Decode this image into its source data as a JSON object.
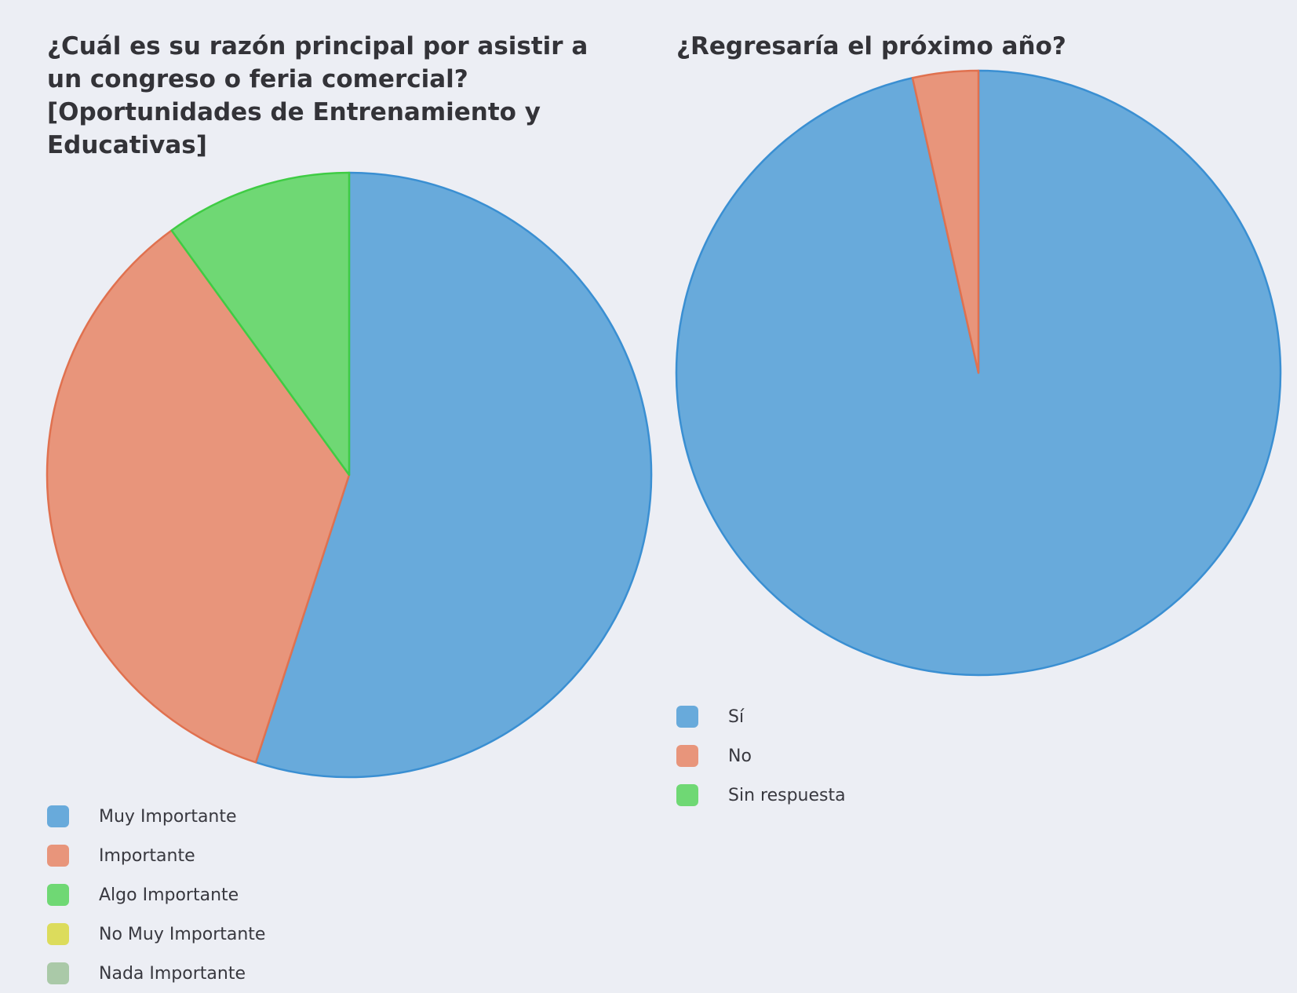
{
  "charts": [
    {
      "id": "left",
      "chart_data": {
        "type": "pie",
        "title": "¿Cuál es su razón principal por asistir a un congreso o feria comercial? [Oportunidades de Entrenamiento y Educativas]",
        "categories": [
          "Muy Importante",
          "Importante",
          "Algo Importante",
          "No Muy Importante",
          "Nada Importante"
        ],
        "values": [
          55,
          35,
          10,
          0,
          0
        ],
        "unit": "percent (estimated)",
        "colors": [
          "#68aadb",
          "#e8957b",
          "#6fd874",
          "#dcdc5c",
          "#aac9a8"
        ],
        "stroke_colors": [
          "#3a8fd2",
          "#e0714f",
          "#3fcc44",
          "#c9c93a",
          "#8fb88d"
        ],
        "legend_position": "bottom-left"
      }
    },
    {
      "id": "right",
      "chart_data": {
        "type": "pie",
        "title": "¿Regresaría el próximo año?",
        "categories": [
          "Sí",
          "No",
          "Sin respuesta"
        ],
        "values": [
          96.5,
          3.5,
          0
        ],
        "unit": "percent (estimated)",
        "colors": [
          "#68aadb",
          "#e8957b",
          "#6fd874"
        ],
        "stroke_colors": [
          "#3a8fd2",
          "#e0714f",
          "#3fcc44"
        ],
        "legend_position": "bottom-left"
      }
    }
  ]
}
